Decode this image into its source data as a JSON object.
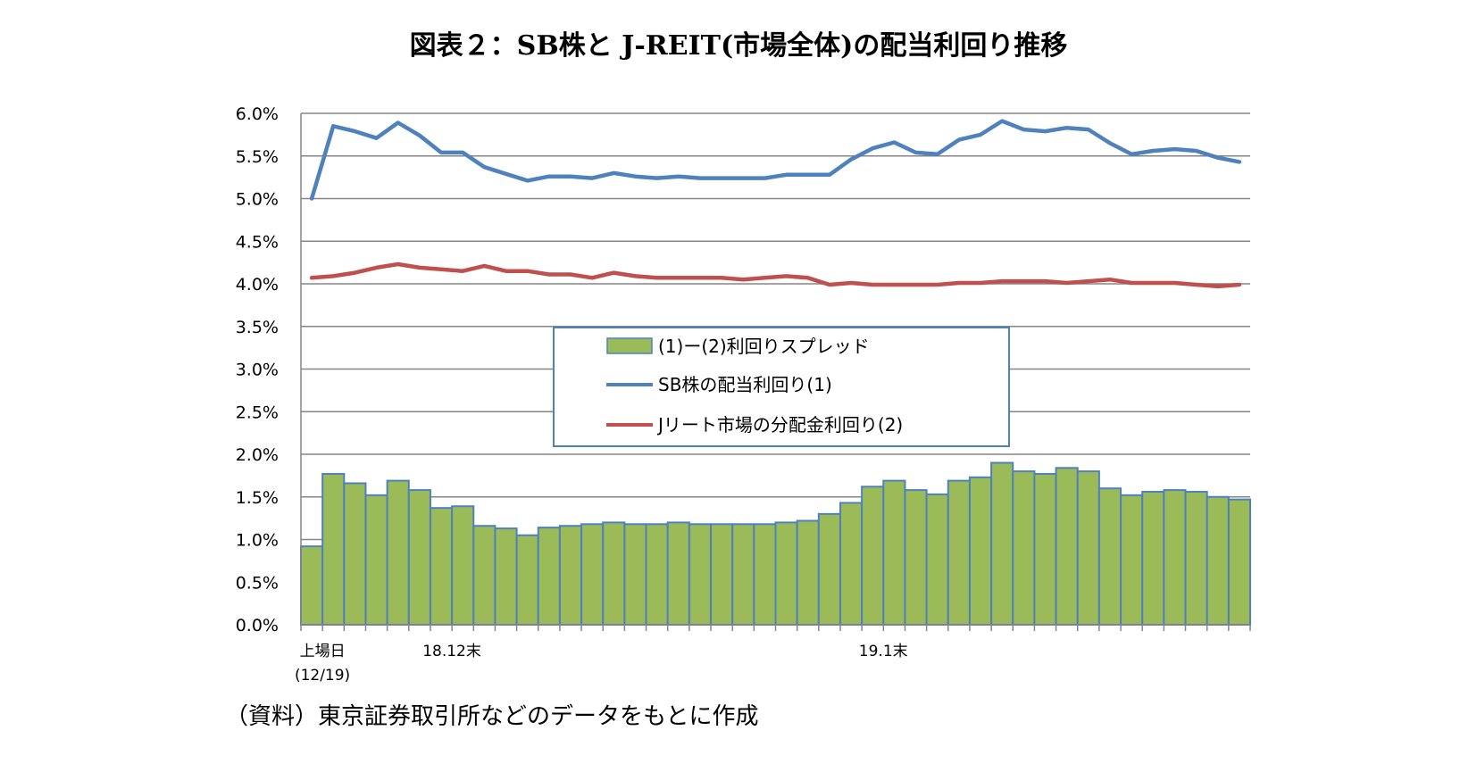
{
  "title": "図表２：SB株と J-REIT(市場全体)の配当利回り推移",
  "source": "（資料）東京証券取引所などのデータをもとに作成",
  "chart_data": {
    "type": "bar+line",
    "ylim": [
      0,
      0.06
    ],
    "yticks": [
      "0.0%",
      "0.5%",
      "1.0%",
      "1.5%",
      "2.0%",
      "2.5%",
      "3.0%",
      "3.5%",
      "4.0%",
      "4.5%",
      "5.0%",
      "5.5%",
      "6.0%"
    ],
    "x_labels": [
      {
        "index": 0,
        "text": "上場日"
      },
      {
        "index": 0,
        "text": "(12/19)"
      },
      {
        "index": 6,
        "text": "18.12末"
      },
      {
        "index": 26,
        "text": "19.1末"
      }
    ],
    "legend": {
      "placement": "center"
    },
    "series": [
      {
        "name": "(1)ー(2)利回りスプレッド",
        "kind": "bar",
        "color": "#9bbb59",
        "edge": "#4f81bd",
        "values": [
          0.92,
          1.77,
          1.66,
          1.52,
          1.69,
          1.58,
          1.37,
          1.39,
          1.16,
          1.13,
          1.05,
          1.14,
          1.16,
          1.18,
          1.2,
          1.18,
          1.18,
          1.2,
          1.18,
          1.18,
          1.18,
          1.18,
          1.2,
          1.22,
          1.3,
          1.43,
          1.62,
          1.69,
          1.58,
          1.53,
          1.69,
          1.73,
          1.9,
          1.8,
          1.77,
          1.84,
          1.8,
          1.6,
          1.52,
          1.56,
          1.58,
          1.56,
          1.5,
          1.47
        ]
      },
      {
        "name": "SB株の配当利回り(1)",
        "kind": "line",
        "color": "#4f81bd",
        "values": [
          5.0,
          5.85,
          5.79,
          5.71,
          5.89,
          5.74,
          5.54,
          5.54,
          5.37,
          5.29,
          5.21,
          5.26,
          5.26,
          5.24,
          5.3,
          5.26,
          5.24,
          5.26,
          5.24,
          5.24,
          5.24,
          5.24,
          5.28,
          5.28,
          5.28,
          5.46,
          5.59,
          5.66,
          5.54,
          5.52,
          5.69,
          5.75,
          5.91,
          5.81,
          5.79,
          5.83,
          5.81,
          5.65,
          5.52,
          5.56,
          5.58,
          5.56,
          5.48,
          5.43
        ]
      },
      {
        "name": "Jリート市場の分配金利回り(2)",
        "kind": "line",
        "color": "#c0504d",
        "values": [
          4.07,
          4.09,
          4.13,
          4.19,
          4.23,
          4.19,
          4.17,
          4.15,
          4.21,
          4.15,
          4.15,
          4.11,
          4.11,
          4.07,
          4.13,
          4.09,
          4.07,
          4.07,
          4.07,
          4.07,
          4.05,
          4.07,
          4.09,
          4.07,
          3.99,
          4.01,
          3.99,
          3.99,
          3.99,
          3.99,
          4.01,
          4.01,
          4.03,
          4.03,
          4.03,
          4.01,
          4.03,
          4.05,
          4.01,
          4.01,
          4.01,
          3.99,
          3.97,
          3.99
        ]
      }
    ]
  }
}
